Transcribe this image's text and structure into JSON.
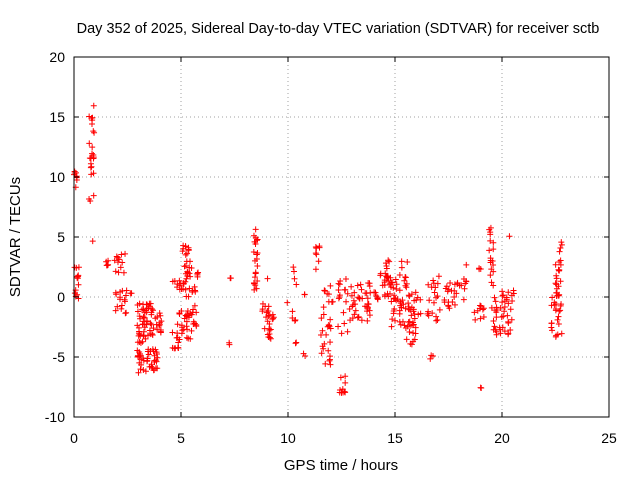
{
  "chart_data": {
    "type": "scatter",
    "title": "Day 352 of 2025, Sidereal Day-to-day VTEC variation (SDTVAR) for receiver sctb",
    "xlabel": "GPS time / hours",
    "ylabel": "SDTVAR / TECUs",
    "xlim": [
      0,
      25
    ],
    "ylim": [
      -10,
      20
    ],
    "xticks": [
      0,
      5,
      10,
      15,
      20,
      25
    ],
    "yticks": [
      -10,
      -5,
      0,
      5,
      10,
      15,
      20
    ],
    "grid": true,
    "marker": "+",
    "color": "#ff0000",
    "clusters": [
      {
        "x": [
          0.0,
          0.15
        ],
        "y": [
          9.0,
          10.5
        ],
        "n": 8
      },
      {
        "x": [
          0.0,
          0.25
        ],
        "y": [
          -0.8,
          2.6
        ],
        "n": 14
      },
      {
        "x": [
          0.7,
          0.95
        ],
        "y": [
          8.0,
          16.2
        ],
        "n": 24
      },
      {
        "x": [
          0.85,
          0.9
        ],
        "y": [
          4.6,
          4.7
        ],
        "n": 1
      },
      {
        "x": [
          1.5,
          1.7
        ],
        "y": [
          2.6,
          3.2
        ],
        "n": 6
      },
      {
        "x": [
          1.9,
          2.4
        ],
        "y": [
          2.0,
          3.6
        ],
        "n": 12
      },
      {
        "x": [
          1.9,
          2.5
        ],
        "y": [
          -1.5,
          0.8
        ],
        "n": 16
      },
      {
        "x": [
          2.6,
          2.7
        ],
        "y": [
          0.2,
          0.6
        ],
        "n": 2
      },
      {
        "x": [
          2.9,
          3.4
        ],
        "y": [
          -6.5,
          -0.5
        ],
        "n": 44
      },
      {
        "x": [
          3.2,
          3.7
        ],
        "y": [
          -3.5,
          -0.5
        ],
        "n": 26
      },
      {
        "x": [
          3.4,
          3.9
        ],
        "y": [
          -6.2,
          -4.2
        ],
        "n": 26
      },
      {
        "x": [
          3.6,
          4.1
        ],
        "y": [
          -3.0,
          -1.2
        ],
        "n": 16
      },
      {
        "x": [
          4.6,
          5.0
        ],
        "y": [
          -4.3,
          -2.8
        ],
        "n": 10
      },
      {
        "x": [
          4.6,
          5.0
        ],
        "y": [
          0.6,
          1.4
        ],
        "n": 8
      },
      {
        "x": [
          4.8,
          5.6
        ],
        "y": [
          -3.6,
          -0.8
        ],
        "n": 28
      },
      {
        "x": [
          5.0,
          5.5
        ],
        "y": [
          0.0,
          4.4
        ],
        "n": 32
      },
      {
        "x": [
          5.5,
          5.8
        ],
        "y": [
          -2.5,
          2.6
        ],
        "n": 16
      },
      {
        "x": [
          7.2,
          7.3
        ],
        "y": [
          -4.0,
          -3.7
        ],
        "n": 2
      },
      {
        "x": [
          7.3,
          7.4
        ],
        "y": [
          1.4,
          1.6
        ],
        "n": 2
      },
      {
        "x": [
          8.4,
          8.6
        ],
        "y": [
          0.4,
          6.0
        ],
        "n": 22
      },
      {
        "x": [
          8.8,
          9.2
        ],
        "y": [
          -3.8,
          -0.5
        ],
        "n": 20
      },
      {
        "x": [
          9.0,
          9.4
        ],
        "y": [
          -2.0,
          -1.2
        ],
        "n": 6
      },
      {
        "x": [
          9.0,
          9.1
        ],
        "y": [
          1.4,
          1.6
        ],
        "n": 1
      },
      {
        "x": [
          9.9,
          10.0
        ],
        "y": [
          -0.6,
          -0.4
        ],
        "n": 1
      },
      {
        "x": [
          10.2,
          10.4
        ],
        "y": [
          1.0,
          2.5
        ],
        "n": 4
      },
      {
        "x": [
          10.2,
          10.4
        ],
        "y": [
          -2.0,
          -1.0
        ],
        "n": 4
      },
      {
        "x": [
          10.3,
          10.4
        ],
        "y": [
          -4.0,
          -3.5
        ],
        "n": 2
      },
      {
        "x": [
          10.7,
          10.8
        ],
        "y": [
          -5.0,
          -4.6
        ],
        "n": 2
      },
      {
        "x": [
          10.7,
          10.8
        ],
        "y": [
          0.0,
          0.5
        ],
        "n": 2
      },
      {
        "x": [
          11.3,
          11.5
        ],
        "y": [
          2.2,
          4.6
        ],
        "n": 8
      },
      {
        "x": [
          11.5,
          12.0
        ],
        "y": [
          -5.8,
          1.0
        ],
        "n": 30
      },
      {
        "x": [
          12.0,
          12.3
        ],
        "y": [
          -0.5,
          -0.3
        ],
        "n": 2
      },
      {
        "x": [
          12.4,
          12.7
        ],
        "y": [
          -8.0,
          -6.5
        ],
        "n": 10
      },
      {
        "x": [
          12.3,
          12.9
        ],
        "y": [
          -3.2,
          1.5
        ],
        "n": 18
      },
      {
        "x": [
          12.9,
          13.9
        ],
        "y": [
          -2.0,
          1.2
        ],
        "n": 40
      },
      {
        "x": [
          14.0,
          14.2
        ],
        "y": [
          -0.5,
          1.0
        ],
        "n": 6
      },
      {
        "x": [
          14.3,
          14.8
        ],
        "y": [
          0.0,
          3.6
        ],
        "n": 26
      },
      {
        "x": [
          14.8,
          15.5
        ],
        "y": [
          -2.5,
          1.5
        ],
        "n": 34
      },
      {
        "x": [
          15.2,
          15.6
        ],
        "y": [
          0.5,
          3.0
        ],
        "n": 10
      },
      {
        "x": [
          15.5,
          16.0
        ],
        "y": [
          -4.0,
          -1.0
        ],
        "n": 22
      },
      {
        "x": [
          15.6,
          16.2
        ],
        "y": [
          -1.5,
          0.5
        ],
        "n": 16
      },
      {
        "x": [
          16.6,
          16.8
        ],
        "y": [
          -5.2,
          -4.8
        ],
        "n": 3
      },
      {
        "x": [
          16.5,
          17.1
        ],
        "y": [
          -2.5,
          2.0
        ],
        "n": 20
      },
      {
        "x": [
          17.3,
          17.9
        ],
        "y": [
          -1.0,
          1.2
        ],
        "n": 18
      },
      {
        "x": [
          17.9,
          18.5
        ],
        "y": [
          -0.5,
          1.5
        ],
        "n": 10
      },
      {
        "x": [
          18.3,
          18.4
        ],
        "y": [
          2.6,
          2.8
        ],
        "n": 1
      },
      {
        "x": [
          18.7,
          19.2
        ],
        "y": [
          -2.0,
          -0.5
        ],
        "n": 10
      },
      {
        "x": [
          18.9,
          19.1
        ],
        "y": [
          -7.6,
          -7.4
        ],
        "n": 2
      },
      {
        "x": [
          18.9,
          19.1
        ],
        "y": [
          2.0,
          2.4
        ],
        "n": 3
      },
      {
        "x": [
          19.4,
          19.6
        ],
        "y": [
          0.5,
          6.0
        ],
        "n": 18
      },
      {
        "x": [
          19.5,
          20.5
        ],
        "y": [
          -3.4,
          0.0
        ],
        "n": 36
      },
      {
        "x": [
          20.0,
          20.3
        ],
        "y": [
          -0.5,
          0.5
        ],
        "n": 6
      },
      {
        "x": [
          20.3,
          20.4
        ],
        "y": [
          5.0,
          5.3
        ],
        "n": 1
      },
      {
        "x": [
          20.4,
          20.6
        ],
        "y": [
          -0.2,
          0.8
        ],
        "n": 3
      },
      {
        "x": [
          22.3,
          22.8
        ],
        "y": [
          -3.5,
          0.0
        ],
        "n": 22
      },
      {
        "x": [
          22.5,
          22.8
        ],
        "y": [
          0.0,
          4.6
        ],
        "n": 24
      }
    ]
  }
}
